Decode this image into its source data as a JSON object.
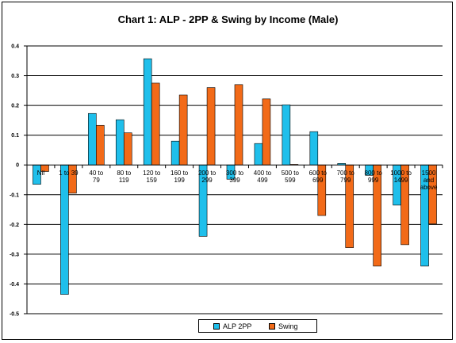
{
  "chart_data": {
    "type": "bar",
    "title": "Chart 1: ALP - 2PP & Swing by Income (Male)",
    "xlabel": "",
    "ylabel": "",
    "ylim": [
      -0.5,
      0.4
    ],
    "yticks": [
      "0.4",
      "0.3",
      "0.2",
      "0.1",
      "0",
      "-0.1",
      "-0.2",
      "-0.3",
      "-0.4",
      "-0.5"
    ],
    "categories": [
      [
        "Nil"
      ],
      [
        "1 to 39"
      ],
      [
        "40 to",
        "79"
      ],
      [
        "80 to",
        "119"
      ],
      [
        "120 to",
        "159"
      ],
      [
        "160 to",
        "199"
      ],
      [
        "200 to",
        "299"
      ],
      [
        "300 to",
        "399"
      ],
      [
        "400 to",
        "499"
      ],
      [
        "500 to",
        "599"
      ],
      [
        "600 to",
        "699"
      ],
      [
        "700 to",
        "799"
      ],
      [
        "800 to",
        "999"
      ],
      [
        "1000 to",
        "1499"
      ],
      [
        "1500",
        "and",
        "above"
      ]
    ],
    "series": [
      {
        "name": "ALP 2PP",
        "color": "#1fbfeb",
        "values": [
          -0.065,
          -0.435,
          0.173,
          0.152,
          0.357,
          0.08,
          -0.24,
          -0.048,
          0.072,
          0.202,
          0.112,
          0.005,
          -0.035,
          -0.135,
          -0.34
        ]
      },
      {
        "name": "Swing",
        "color": "#f26a18",
        "values": [
          -0.022,
          -0.095,
          0.133,
          0.108,
          0.275,
          0.235,
          0.26,
          0.27,
          0.222,
          0.002,
          -0.17,
          -0.278,
          -0.34,
          -0.268,
          -0.198
        ]
      }
    ],
    "grid": true,
    "legend": "bottom"
  }
}
